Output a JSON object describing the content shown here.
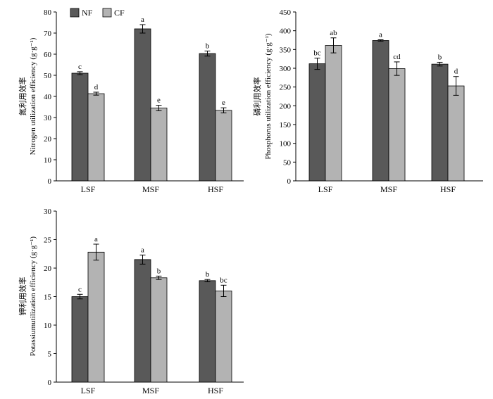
{
  "chart_data": [
    {
      "type": "bar",
      "ylabel_cn": "氮利用效率",
      "ylabel_en": "Nitrogen utilization efficiency (g·g⁻¹)",
      "categories": [
        "LSF",
        "MSF",
        "HSF"
      ],
      "yticks": [
        "0",
        "10",
        "20",
        "30",
        "40",
        "50",
        "60",
        "70",
        "80"
      ],
      "ylim": [
        0,
        80
      ],
      "legend_position": "top-left",
      "series": [
        {
          "name": "NF",
          "color": "#595959",
          "values": [
            51,
            72,
            60.3
          ],
          "errors": [
            0.7,
            2.0,
            1.2
          ],
          "letters": [
            "c",
            "a",
            "b"
          ]
        },
        {
          "name": "CF",
          "color": "#b3b3b3",
          "values": [
            41.3,
            34.5,
            33.4
          ],
          "errors": [
            0.7,
            1.3,
            1.2
          ],
          "letters": [
            "d",
            "e",
            "e"
          ]
        }
      ]
    },
    {
      "type": "bar",
      "ylabel_cn": "磷利用效率",
      "ylabel_en": "Phosphorus utilization efficiency (g·g⁻¹)",
      "categories": [
        "LSF",
        "MSF",
        "HSF"
      ],
      "yticks": [
        "0",
        "50",
        "100",
        "150",
        "200",
        "250",
        "300",
        "350",
        "400",
        "450"
      ],
      "ylim": [
        0,
        450
      ],
      "series": [
        {
          "name": "NF",
          "color": "#595959",
          "values": [
            312,
            374,
            311
          ],
          "errors": [
            15,
            2,
            5
          ],
          "letters": [
            "bc",
            "a",
            "b"
          ]
        },
        {
          "name": "CF",
          "color": "#b3b3b3",
          "values": [
            361,
            299,
            253
          ],
          "errors": [
            20,
            18,
            25
          ],
          "letters": [
            "ab",
            "cd",
            "d"
          ]
        }
      ]
    },
    {
      "type": "bar",
      "ylabel_cn": "钾利用效率",
      "ylabel_en": "Potassiumutilization efficiency (g·g⁻¹)",
      "categories": [
        "LSF",
        "MSF",
        "HSF"
      ],
      "yticks": [
        "0",
        "5",
        "10",
        "15",
        "20",
        "25",
        "30"
      ],
      "ylim": [
        0,
        30
      ],
      "series": [
        {
          "name": "NF",
          "color": "#595959",
          "values": [
            15,
            21.5,
            17.8
          ],
          "errors": [
            0.4,
            0.8,
            0.2
          ],
          "letters": [
            "c",
            "a",
            "b"
          ]
        },
        {
          "name": "CF",
          "color": "#b3b3b3",
          "values": [
            22.8,
            18.3,
            16
          ],
          "errors": [
            1.4,
            0.3,
            1.0
          ],
          "letters": [
            "a",
            "b",
            "bc"
          ]
        }
      ]
    }
  ]
}
